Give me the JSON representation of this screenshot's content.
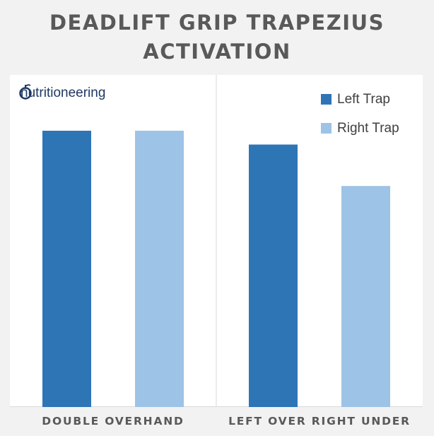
{
  "title": "DEADLIFT GRIP TRAPEZIUS ACTIVATION",
  "logo_text": "nutritioneering",
  "colors": {
    "left": "#2e75b6",
    "right": "#9dc3e6"
  },
  "chart_data": {
    "type": "bar",
    "title": "DEADLIFT GRIP TRAPEZIUS ACTIVATION",
    "categories": [
      "DOUBLE OVERHAND",
      "LEFT OVER RIGHT UNDER"
    ],
    "series": [
      {
        "name": "Left Trap",
        "values": [
          100,
          95
        ]
      },
      {
        "name": "Right Trap",
        "values": [
          100,
          80
        ]
      }
    ],
    "ylim": [
      0,
      100
    ],
    "y_axis_shown": false,
    "grid": false,
    "legend": "top-right"
  }
}
